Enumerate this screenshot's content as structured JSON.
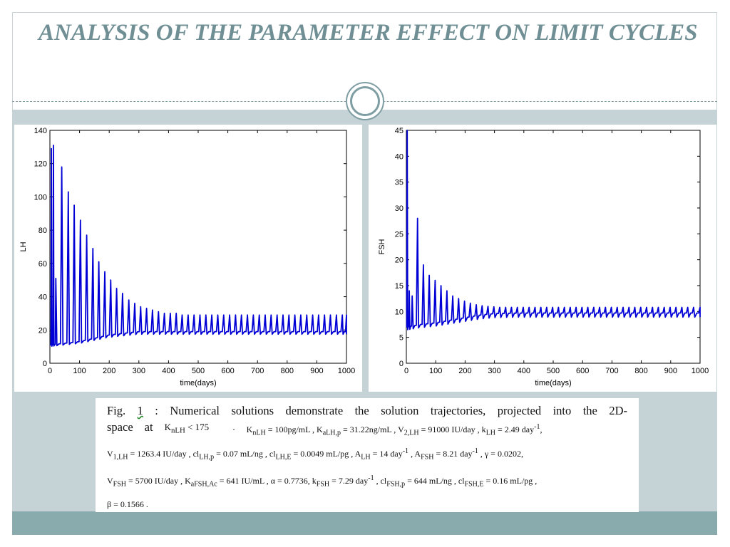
{
  "slide": {
    "title": "ANALYSIS OF  THE PARAMETER EFFECT ON LIMIT CYCLES"
  },
  "colors": {
    "title": "#6f8f95",
    "content_band": "#c5d2d6",
    "footer_band": "#8aabad",
    "series": "#0000d6"
  },
  "chart_data": [
    {
      "type": "line",
      "xlabel": "time(days)",
      "ylabel": "LH",
      "xlim": [
        0,
        1000
      ],
      "ylim": [
        0,
        140
      ],
      "xticks": [
        0,
        100,
        200,
        300,
        400,
        500,
        600,
        700,
        800,
        900,
        1000
      ],
      "yticks": [
        0,
        20,
        40,
        60,
        80,
        100,
        120,
        140
      ],
      "grid": false,
      "series": [
        {
          "oscillation": {
            "baseline": [
              [
                0,
                11
              ],
              [
                50,
                12
              ],
              [
                100,
                13
              ],
              [
                150,
                15
              ],
              [
                200,
                17
              ],
              [
                250,
                18
              ],
              [
                300,
                19
              ],
              [
                400,
                19
              ],
              [
                1000,
                19
              ]
            ],
            "peaks": [
              [
                5,
                129
              ],
              [
                12,
                131
              ],
              [
                20,
                51
              ],
              [
                40,
                118
              ],
              [
                62,
                103
              ],
              [
                82,
                95
              ],
              [
                103,
                86
              ],
              [
                124,
                77
              ],
              [
                145,
                69
              ],
              [
                165,
                61
              ],
              [
                185,
                55
              ],
              [
                205,
                50
              ],
              [
                225,
                45
              ],
              [
                245,
                42
              ],
              [
                266,
                38
              ],
              [
                286,
                36
              ],
              [
                306,
                34
              ],
              [
                326,
                33
              ],
              [
                346,
                32
              ],
              [
                366,
                31
              ],
              [
                386,
                30
              ],
              [
                406,
                30
              ],
              [
                426,
                30
              ],
              [
                446,
                29
              ],
              [
                466,
                29
              ],
              [
                486,
                29
              ],
              [
                506,
                29
              ],
              [
                526,
                29
              ],
              [
                546,
                29
              ],
              [
                566,
                29
              ],
              [
                586,
                29
              ],
              [
                606,
                29
              ],
              [
                626,
                29
              ],
              [
                646,
                29
              ],
              [
                666,
                29
              ],
              [
                686,
                29
              ],
              [
                706,
                29
              ],
              [
                726,
                29
              ],
              [
                746,
                29
              ],
              [
                766,
                29
              ],
              [
                786,
                29
              ],
              [
                806,
                29
              ],
              [
                826,
                29
              ],
              [
                846,
                29
              ],
              [
                866,
                29
              ],
              [
                886,
                29
              ],
              [
                906,
                29
              ],
              [
                926,
                29
              ],
              [
                946,
                29
              ],
              [
                966,
                29
              ],
              [
                986,
                29
              ],
              [
                1000,
                29
              ]
            ]
          }
        }
      ]
    },
    {
      "type": "line",
      "xlabel": "time(days)",
      "ylabel": "FSH",
      "xlim": [
        0,
        1000
      ],
      "ylim": [
        0,
        45
      ],
      "xticks": [
        0,
        100,
        200,
        300,
        400,
        500,
        600,
        700,
        800,
        900,
        1000
      ],
      "yticks": [
        0,
        5,
        10,
        15,
        20,
        25,
        30,
        35,
        40,
        45
      ],
      "grid": false,
      "series": [
        {
          "oscillation": {
            "baseline": [
              [
                0,
                7
              ],
              [
                50,
                7.5
              ],
              [
                100,
                7.8
              ],
              [
                150,
                8.3
              ],
              [
                200,
                8.8
              ],
              [
                250,
                9.3
              ],
              [
                300,
                9.6
              ],
              [
                400,
                9.7
              ],
              [
                1000,
                9.7
              ]
            ],
            "peaks": [
              [
                3,
                45
              ],
              [
                10,
                14
              ],
              [
                20,
                13
              ],
              [
                38,
                28
              ],
              [
                58,
                19
              ],
              [
                78,
                17
              ],
              [
                98,
                16
              ],
              [
                118,
                15
              ],
              [
                138,
                14
              ],
              [
                158,
                13
              ],
              [
                178,
                12.5
              ],
              [
                198,
                12
              ],
              [
                218,
                11.6
              ],
              [
                238,
                11.3
              ],
              [
                258,
                11.1
              ],
              [
                278,
                11
              ],
              [
                298,
                10.9
              ],
              [
                318,
                10.8
              ],
              [
                338,
                10.8
              ],
              [
                358,
                10.8
              ],
              [
                378,
                10.8
              ],
              [
                398,
                10.8
              ],
              [
                418,
                10.8
              ],
              [
                438,
                10.8
              ],
              [
                458,
                10.8
              ],
              [
                478,
                10.8
              ],
              [
                498,
                10.8
              ],
              [
                518,
                10.8
              ],
              [
                538,
                10.8
              ],
              [
                558,
                10.8
              ],
              [
                578,
                10.8
              ],
              [
                598,
                10.8
              ],
              [
                618,
                10.8
              ],
              [
                638,
                10.8
              ],
              [
                658,
                10.8
              ],
              [
                678,
                10.8
              ],
              [
                698,
                10.8
              ],
              [
                718,
                10.8
              ],
              [
                738,
                10.8
              ],
              [
                758,
                10.8
              ],
              [
                778,
                10.8
              ],
              [
                798,
                10.8
              ],
              [
                818,
                10.8
              ],
              [
                838,
                10.8
              ],
              [
                858,
                10.8
              ],
              [
                878,
                10.8
              ],
              [
                898,
                10.8
              ],
              [
                918,
                10.8
              ],
              [
                938,
                10.8
              ],
              [
                958,
                10.8
              ],
              [
                978,
                10.8
              ],
              [
                1000,
                10.8
              ]
            ]
          }
        }
      ]
    }
  ],
  "caption": {
    "line1_words": [
      "Fig.",
      "1",
      ":",
      "Numerical",
      "solutions",
      "demonstrate",
      "the",
      "solution",
      "trajectories,",
      "projected",
      "into",
      "the",
      "2D-"
    ],
    "line2_a": "space",
    "line2_b": "at",
    "line2_c": "K",
    "line2_c_sub": "nLH",
    "line2_d": "< 175",
    "line2_e": ".",
    "line2_rest": "K<sub>nLH</sub> = 100pg/mL , K<sub>aLH,p</sub> = 31.22ng/mL , V<sub>2,LH</sub> = 91000 IU/day , k<sub>LH</sub> = 2.49 day<sup>-1</sup>,",
    "line3": "V<sub>1,LH</sub> = 1263.4 IU/day , cl<sub>LH,p</sub> = 0.07 mL/ng , cl<sub>LH,E</sub> = 0.0049 mL/pg , A<sub>LH</sub> = 14 day<sup>-1</sup> , A<sub>FSH</sub> = 8.21 day<sup>-1</sup> , γ = 0.0202,",
    "line4": "V<sub>FSH</sub> = 5700 IU/day , K<sub>aFSH,Ac</sub> = 641 IU/mL , α = 0.7736, k<sub>FSH</sub> = 7.29 day<sup>-1</sup> , cl<sub>FSH,p</sub> = 644 mL/ng , cl<sub>FSH,E</sub> = 0.16 mL/pg ,",
    "line5": "β = 0.1566 ."
  }
}
